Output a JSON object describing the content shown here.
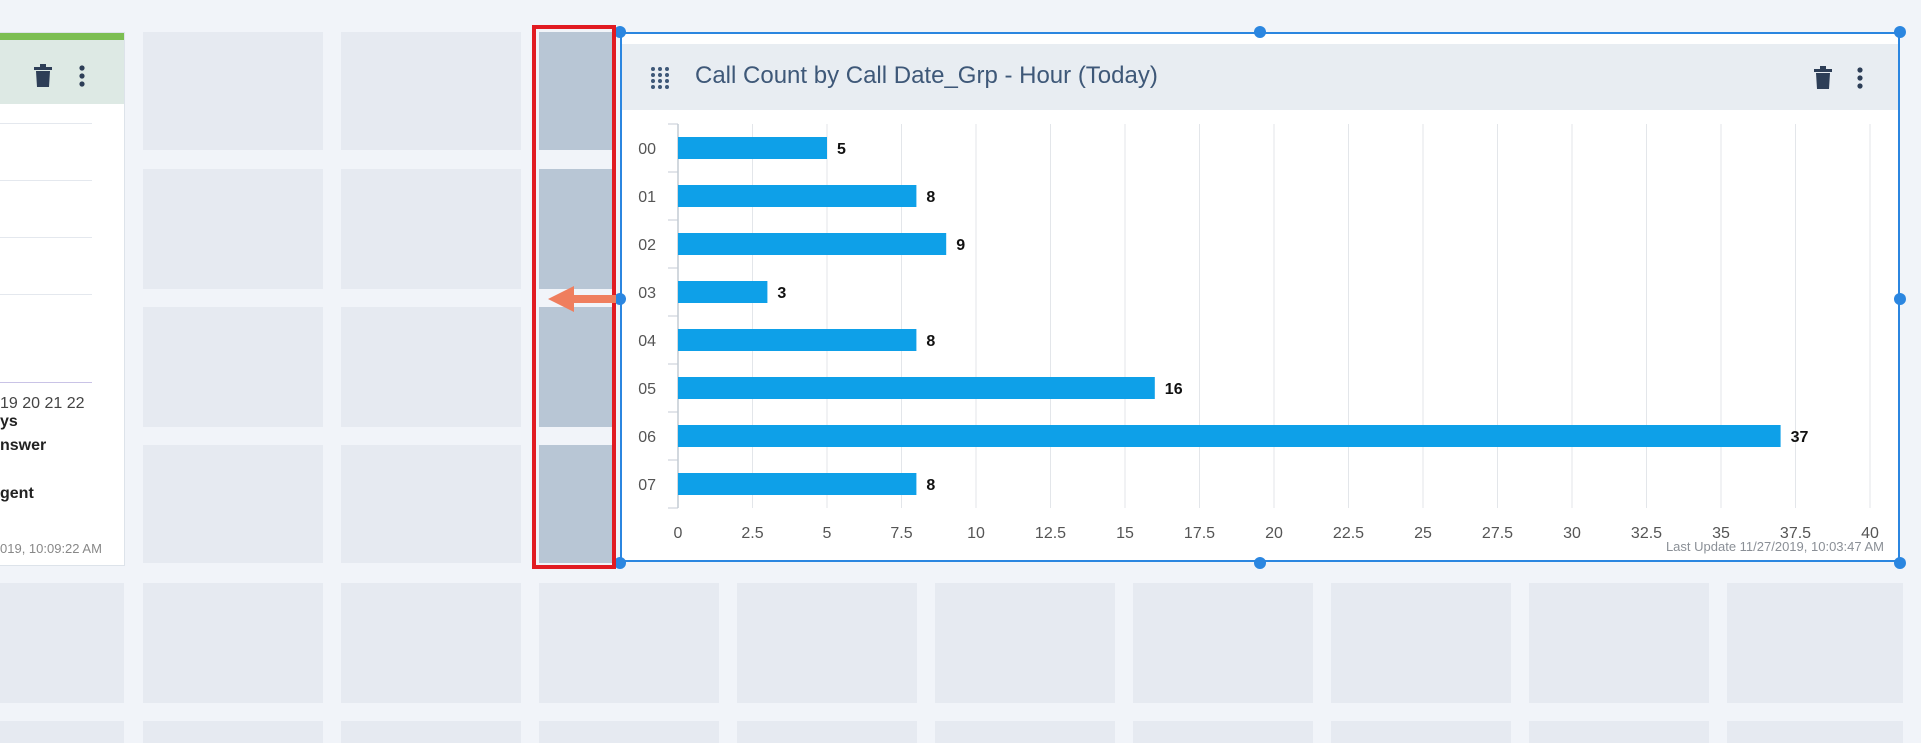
{
  "colors": {
    "bar": "#0ea0e8",
    "selection": "#2b86e0",
    "highlight": "#e11b22",
    "arrow": "#ef7e5e",
    "header_text": "#3e5878"
  },
  "left_widget": {
    "x_ticks": [
      "19",
      "20",
      "21",
      "22"
    ],
    "notes": [
      "ys",
      "nswer",
      "gent"
    ],
    "last_update": "019, 10:09:22 AM",
    "icons": [
      "trash-icon",
      "more-vertical-icon"
    ]
  },
  "main_widget": {
    "title": "Call Count by Call Date_Grp - Hour (Today)",
    "last_update": "Last Update 11/27/2019, 10:03:47 AM",
    "icons": [
      "drag-grid-icon",
      "trash-icon",
      "more-vertical-icon"
    ]
  },
  "chart_data": {
    "type": "bar",
    "orientation": "horizontal",
    "categories": [
      "00",
      "01",
      "02",
      "03",
      "04",
      "05",
      "06",
      "07"
    ],
    "values": [
      5,
      8,
      9,
      3,
      8,
      16,
      37,
      8
    ],
    "data_labels": [
      "5",
      "8",
      "9",
      "3",
      "8",
      "16",
      "37",
      "8"
    ],
    "x_ticks": [
      "0",
      "2.5",
      "5",
      "7.5",
      "10",
      "12.5",
      "15",
      "17.5",
      "20",
      "22.5",
      "25",
      "27.5",
      "30",
      "32.5",
      "35",
      "37.5",
      "40"
    ],
    "xlim": [
      0,
      40
    ],
    "grid": true,
    "legend": "none"
  }
}
